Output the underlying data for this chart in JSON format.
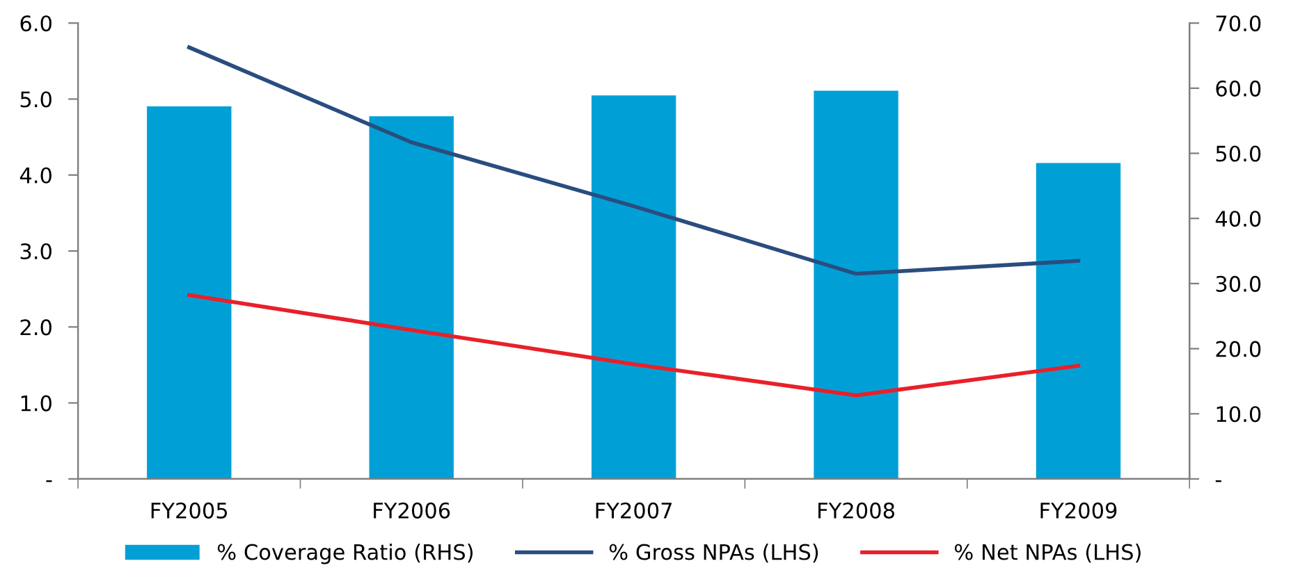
{
  "chart_data": {
    "type": "bar",
    "categories": [
      "FY2005",
      "FY2006",
      "FY2007",
      "FY2008",
      "FY2009"
    ],
    "series": [
      {
        "name": "% Coverage Ratio (RHS)",
        "axis": "y2",
        "color": "#00a0d6",
        "values": [
          57.2,
          55.7,
          58.9,
          59.6,
          48.5
        ]
      },
      {
        "name": "% Gross NPAs (LHS)",
        "type": "line",
        "color": "#2a4d7f",
        "values": [
          5.68,
          4.43,
          3.59,
          2.7,
          2.87
        ]
      },
      {
        "name": "% Net NPAs (LHS)",
        "type": "line",
        "color": "#e8202a",
        "values": [
          2.42,
          1.96,
          1.51,
          1.1,
          1.49
        ]
      }
    ],
    "ylim": [
      0,
      6
    ],
    "yticks": [
      {
        "value": 0,
        "label": "-"
      },
      {
        "value": 1,
        "label": "1.0"
      },
      {
        "value": 2,
        "label": "2.0"
      },
      {
        "value": 3,
        "label": "3.0"
      },
      {
        "value": 4,
        "label": "4.0"
      },
      {
        "value": 5,
        "label": "5.0"
      },
      {
        "value": 6,
        "label": "6.0"
      }
    ],
    "y2lim": [
      0,
      70
    ],
    "y2ticks": [
      {
        "value": 0,
        "label": "-"
      },
      {
        "value": 10,
        "label": "10.0"
      },
      {
        "value": 20,
        "label": "20.0"
      },
      {
        "value": 30,
        "label": "30.0"
      },
      {
        "value": 40,
        "label": "40.0"
      },
      {
        "value": 50,
        "label": "50.0"
      },
      {
        "value": 60,
        "label": "60.0"
      },
      {
        "value": 70,
        "label": "70.0"
      }
    ],
    "grid": false,
    "legend": "bottom",
    "marker": "none",
    "line_style": "solid"
  }
}
